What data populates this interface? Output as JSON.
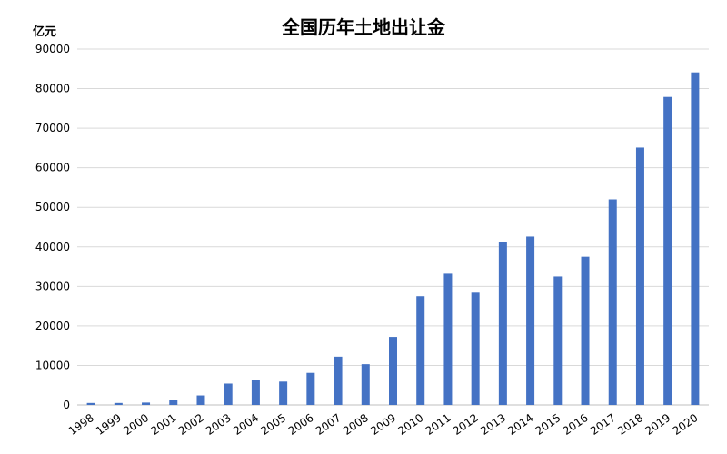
{
  "chart_data": {
    "type": "bar",
    "title": "全国历年土地出让金",
    "ylabel": "亿元",
    "xlabel": "",
    "ylim": [
      0,
      90000
    ],
    "yticks": [
      "0",
      "10000",
      "20000",
      "30000",
      "40000",
      "50000",
      "60000",
      "70000",
      "80000",
      "90000"
    ],
    "grid": true,
    "bar_color": "#4472C4",
    "categories": [
      "1998",
      "1999",
      "2000",
      "2001",
      "2002",
      "2003",
      "2004",
      "2005",
      "2006",
      "2007",
      "2008",
      "2009",
      "2010",
      "2011",
      "2012",
      "2013",
      "2014",
      "2015",
      "2016",
      "2017",
      "2018",
      "2019",
      "2020"
    ],
    "values": [
      500,
      500,
      600,
      1300,
      2400,
      5400,
      6400,
      5900,
      8100,
      12200,
      10300,
      17200,
      27500,
      33200,
      28400,
      41300,
      42600,
      32500,
      37500,
      52000,
      65100,
      77900,
      84100
    ]
  }
}
